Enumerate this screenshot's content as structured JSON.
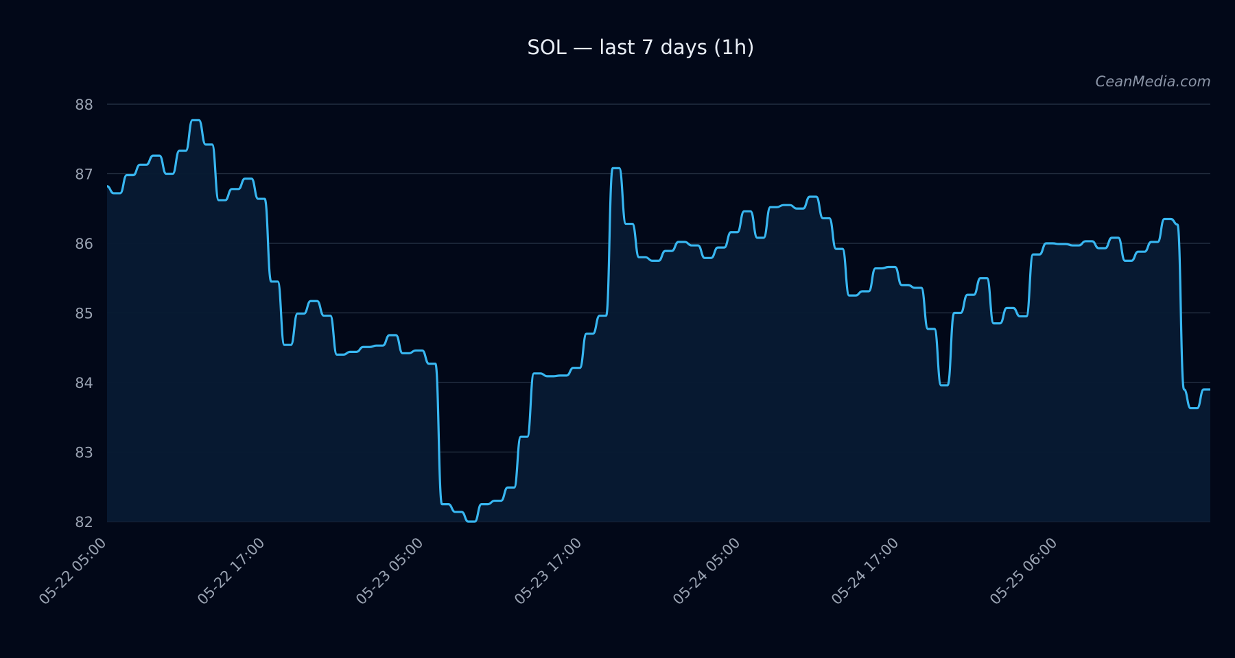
{
  "watermark": "CeanMedia.com",
  "chart_data": {
    "type": "area",
    "title": "SOL — last 7 days (1h)",
    "xlabel": "",
    "ylabel": "",
    "ylim": [
      82,
      88
    ],
    "yticks": [
      82,
      83,
      84,
      85,
      86,
      87,
      88
    ],
    "xtick_labels": [
      "05-22 05:00",
      "05-22 17:00",
      "05-23 05:00",
      "05-23 17:00",
      "05-24 05:00",
      "05-24 17:00",
      "05-25 06:00"
    ],
    "grid": "horizontal",
    "colors": {
      "line": "#38b6f0",
      "fill": "#071a33",
      "grid": "#2a3547",
      "background": "#020818"
    },
    "series": [
      {
        "values": [
          86.82,
          86.72,
          86.72,
          86.98,
          86.98,
          87.13,
          87.13,
          87.26,
          87.26,
          87.0,
          87.0,
          87.33,
          87.33,
          87.77,
          87.77,
          87.42,
          87.42,
          86.62,
          86.62,
          86.78,
          86.78,
          86.93,
          86.93,
          86.64,
          86.64,
          85.45,
          85.45,
          84.54,
          84.54,
          84.99,
          84.99,
          85.17,
          85.17,
          84.96,
          84.96,
          84.4,
          84.4,
          84.44,
          84.44,
          84.51,
          84.51,
          84.53,
          84.53,
          84.68,
          84.68,
          84.42,
          84.42,
          84.46,
          84.46,
          84.27,
          84.27,
          82.25,
          82.25,
          82.14,
          82.14,
          82.0,
          82.0,
          82.25,
          82.25,
          82.3,
          82.3,
          82.49,
          82.49,
          83.22,
          83.22,
          84.13,
          84.13,
          84.09,
          84.09,
          84.1,
          84.1,
          84.21,
          84.21,
          84.7,
          84.7,
          84.96,
          84.96,
          87.08,
          87.08,
          86.28,
          86.28,
          85.8,
          85.8,
          85.75,
          85.75,
          85.89,
          85.89,
          86.02,
          86.02,
          85.97,
          85.97,
          85.79,
          85.79,
          85.94,
          85.94,
          86.16,
          86.16,
          86.46,
          86.46,
          86.08,
          86.08,
          86.52,
          86.52,
          86.55,
          86.55,
          86.5,
          86.5,
          86.67,
          86.67,
          86.36,
          86.36,
          85.92,
          85.92,
          85.25,
          85.25,
          85.31,
          85.31,
          85.64,
          85.64,
          85.66,
          85.66,
          85.4,
          85.4,
          85.36,
          85.36,
          84.77,
          84.77,
          83.96,
          83.96,
          85.0,
          85.0,
          85.26,
          85.26,
          85.5,
          85.5,
          84.85,
          84.85,
          85.07,
          85.07,
          84.95,
          84.95,
          85.84,
          85.84,
          86.0,
          86.0,
          85.99,
          85.99,
          85.97,
          85.97,
          86.03,
          86.03,
          85.93,
          85.93,
          86.08,
          86.08,
          85.75,
          85.75,
          85.88,
          85.88,
          86.02,
          86.02,
          86.35,
          86.35,
          86.27,
          83.9,
          83.63,
          83.63,
          83.9,
          83.9
        ]
      }
    ]
  }
}
